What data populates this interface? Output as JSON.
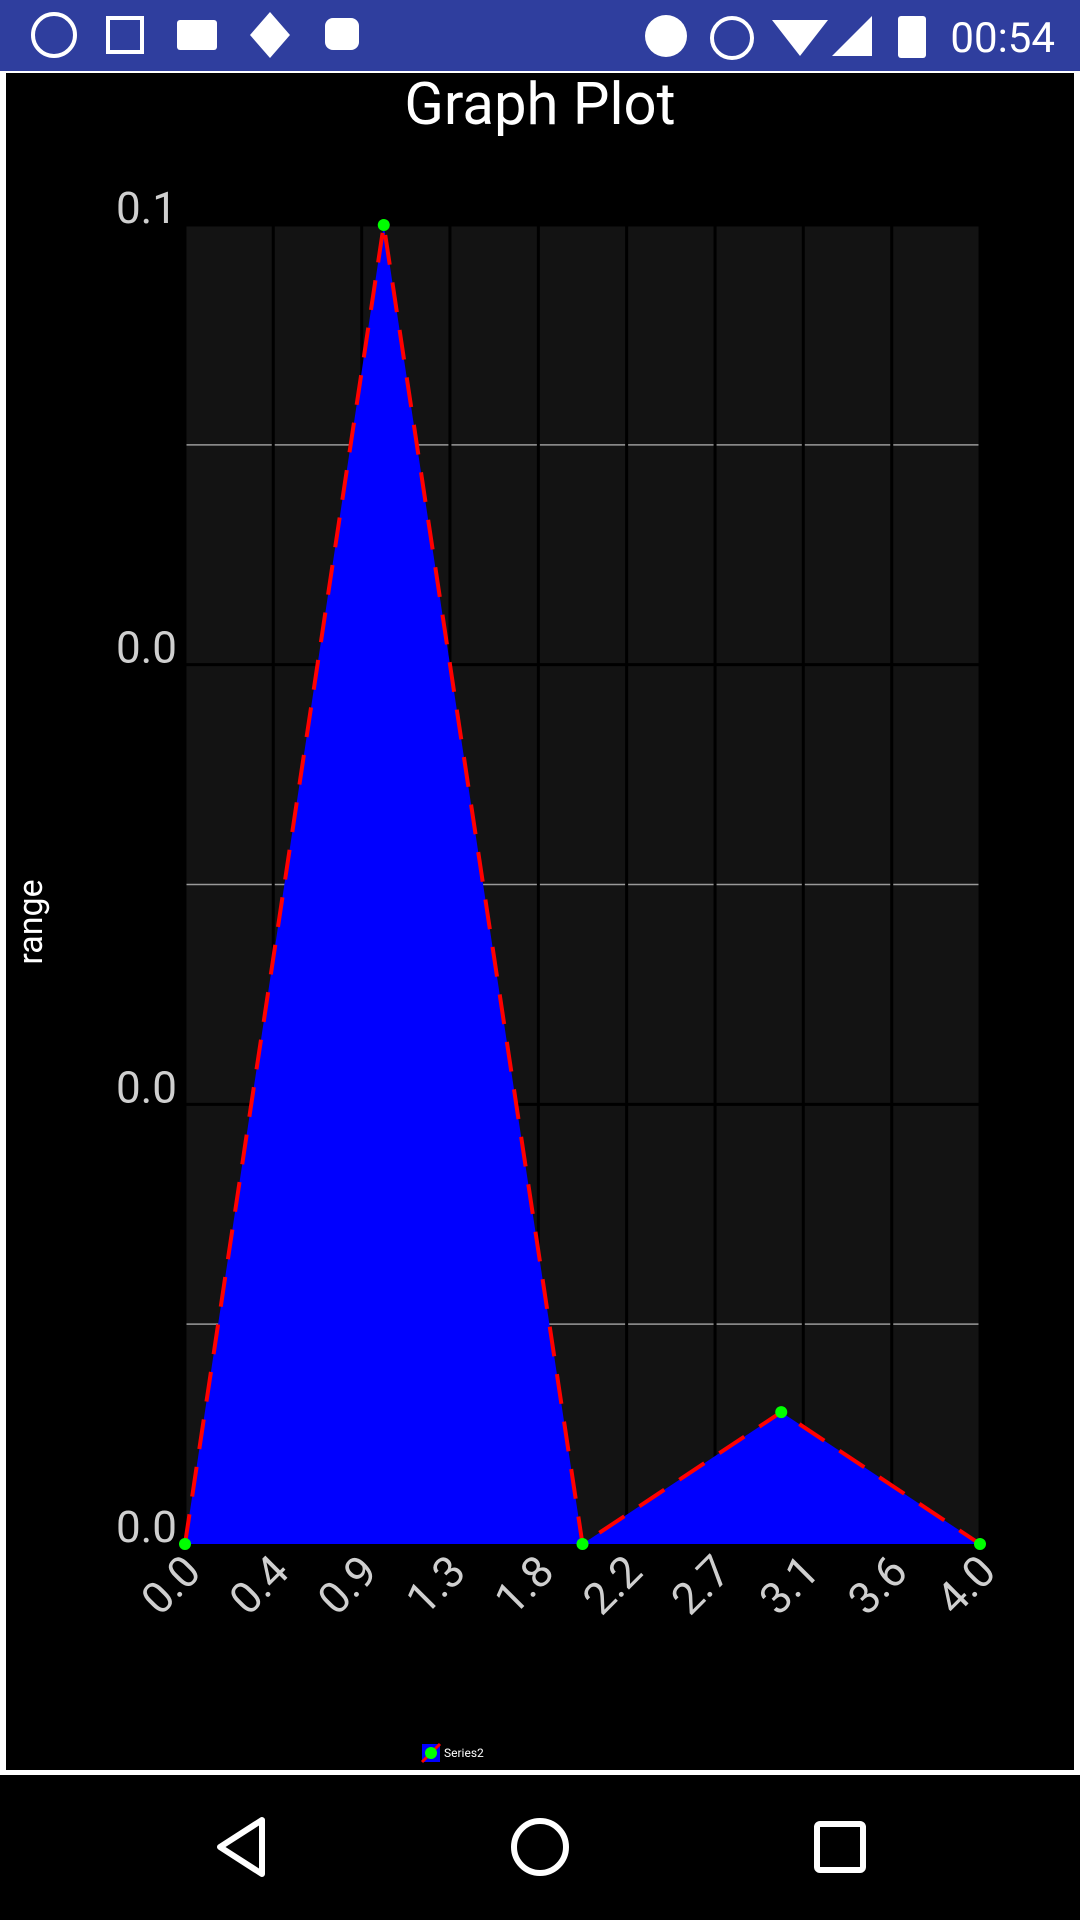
{
  "status_bar": {
    "time": "00:54"
  },
  "chart_data": {
    "type": "area",
    "title": "Graph Plot",
    "y_label": "range",
    "x": [
      0,
      1,
      2,
      3,
      4
    ],
    "series": [
      {
        "name": "Series2",
        "color": "#0000ff",
        "line_color": "#ff0000",
        "marker_color": "#00ff00",
        "values": [
          0,
          0.06,
          0,
          0.006,
          0
        ]
      }
    ],
    "xlim": [
      0,
      4
    ],
    "xticks": [
      {
        "value": 0,
        "label": "0.0"
      },
      {
        "value": 0.444,
        "label": "0.4"
      },
      {
        "value": 0.889,
        "label": "0.9"
      },
      {
        "value": 1.333,
        "label": "1.3"
      },
      {
        "value": 1.778,
        "label": "1.8"
      },
      {
        "value": 2.222,
        "label": "2.2"
      },
      {
        "value": 2.667,
        "label": "2.7"
      },
      {
        "value": 3.111,
        "label": "3.1"
      },
      {
        "value": 3.556,
        "label": "3.6"
      },
      {
        "value": 4,
        "label": "4.0"
      }
    ],
    "ylim": [
      0,
      0.06
    ],
    "yticks": [
      {
        "value": 0,
        "label": "0.0"
      },
      {
        "value": 0.02,
        "label": "0.0"
      },
      {
        "value": 0.04,
        "label": "0.0"
      },
      {
        "value": 0.06,
        "label": "0.1"
      }
    ],
    "y_minor_ticks": [
      0.01,
      0.03,
      0.05
    ],
    "grid": true
  }
}
